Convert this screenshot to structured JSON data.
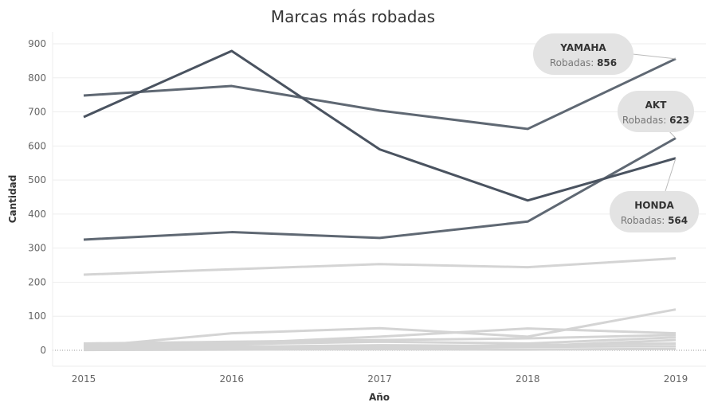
{
  "chart_data": {
    "type": "line",
    "title": "Marcas más robadas",
    "xlabel": "Año",
    "ylabel": "Cantidad",
    "x": [
      "2015",
      "2016",
      "2017",
      "2018",
      "2019"
    ],
    "ylim": [
      0,
      900
    ],
    "yticks": [
      0,
      100,
      200,
      300,
      400,
      500,
      600,
      700,
      800,
      900
    ],
    "grid": true,
    "highlight_color": "#4a5360",
    "highlight_color_2": "#5f6873",
    "muted_color": "#d4d4d4",
    "series": [
      {
        "name": "YAMAHA",
        "values": [
          748,
          776,
          704,
          650,
          856
        ],
        "highlight": true
      },
      {
        "name": "AKT",
        "values": [
          325,
          347,
          330,
          378,
          623
        ],
        "highlight": true
      },
      {
        "name": "HONDA",
        "values": [
          685,
          879,
          590,
          440,
          564
        ],
        "highlight": true
      },
      {
        "values": [
          222,
          238,
          253,
          244,
          270
        ],
        "highlight": false
      },
      {
        "values": [
          10,
          50,
          65,
          40,
          120
        ],
        "highlight": false
      },
      {
        "values": [
          15,
          20,
          40,
          64,
          50
        ],
        "highlight": false
      },
      {
        "values": [
          20,
          25,
          30,
          35,
          45
        ],
        "highlight": false
      },
      {
        "values": [
          12,
          18,
          25,
          20,
          38
        ],
        "highlight": false
      },
      {
        "values": [
          5,
          10,
          15,
          12,
          30
        ],
        "highlight": false
      },
      {
        "values": [
          8,
          12,
          10,
          15,
          20
        ],
        "highlight": false
      },
      {
        "values": [
          3,
          6,
          8,
          10,
          12
        ],
        "highlight": false
      },
      {
        "values": [
          1,
          2,
          3,
          2,
          4
        ],
        "highlight": false
      }
    ],
    "annotations": [
      {
        "series": "YAMAHA",
        "name": "YAMAHA",
        "label": "Robadas:",
        "value": "856"
      },
      {
        "series": "AKT",
        "name": "AKT",
        "label": "Robadas:",
        "value": "623"
      },
      {
        "series": "HONDA",
        "name": "HONDA",
        "label": "Robadas:",
        "value": "564"
      }
    ]
  }
}
